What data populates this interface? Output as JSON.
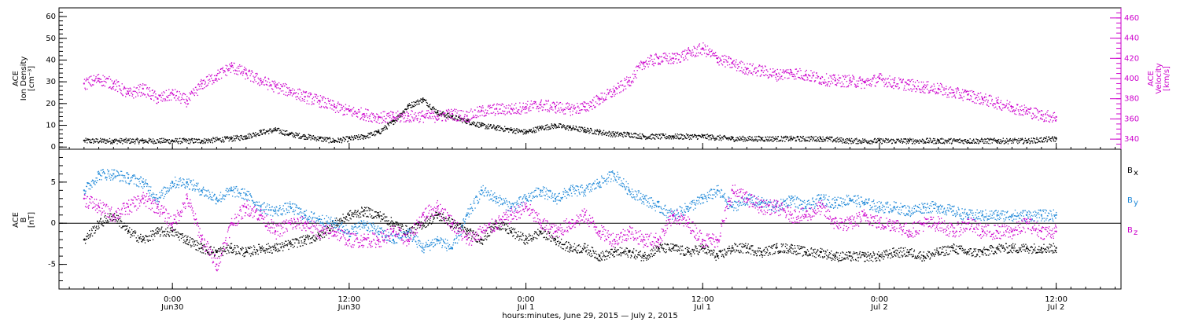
{
  "xlabel": "hours:minutes, June 29, 2015 — July  2, 2015",
  "colors": {
    "black": "#000000",
    "magenta": "#cc00cc",
    "blue": "#1e88d8",
    "axis": "#000000"
  },
  "chart_data": [
    {
      "type": "scatter",
      "panel": "top",
      "ylabel_left": [
        "ACE",
        "Ion Density",
        "[cm⁻³]"
      ],
      "ylabel_right": [
        "ACE",
        "Velocity",
        "[km/s]"
      ],
      "x_range_hours": [
        0,
        66
      ],
      "x_ticks": [
        {
          "h": 6,
          "label": "0:00",
          "sub": "Jun30"
        },
        {
          "h": 18,
          "label": "12:00",
          "sub": "Jun30"
        },
        {
          "h": 30,
          "label": "0:00",
          "sub": "Jul 1"
        },
        {
          "h": 42,
          "label": "12:00",
          "sub": "Jul 1"
        },
        {
          "h": 54,
          "label": "0:00",
          "sub": "Jul 2"
        },
        {
          "h": 66,
          "label": "12:00",
          "sub": "Jul 2"
        }
      ],
      "ylim_left": [
        -1,
        64
      ],
      "yticks_left": [
        0,
        10,
        20,
        30,
        40,
        50,
        60
      ],
      "ylim_right": [
        330,
        470
      ],
      "yticks_right": [
        340,
        360,
        380,
        400,
        420,
        440,
        460
      ],
      "series": [
        {
          "color": "black",
          "axis": "left",
          "x": [
            0,
            2,
            4,
            6,
            8,
            10,
            11,
            12,
            13,
            14,
            15,
            16,
            17,
            18,
            19,
            20,
            21,
            22,
            23,
            24,
            25,
            26,
            27,
            28,
            29,
            30,
            31,
            32,
            33,
            34,
            35,
            36,
            37,
            38,
            40,
            42,
            44,
            46,
            48,
            50,
            52,
            54,
            56,
            58,
            60,
            62,
            64,
            66
          ],
          "y": [
            3,
            3,
            3,
            3,
            3,
            4,
            5,
            7,
            8,
            6,
            5,
            4,
            3,
            4,
            5,
            7,
            12,
            19,
            22,
            16,
            14,
            12,
            10,
            9,
            8,
            7,
            9,
            10,
            9,
            8,
            7,
            6,
            6,
            5,
            5,
            5,
            4,
            4,
            4,
            4,
            3,
            3,
            3,
            3,
            3,
            3,
            3,
            4
          ]
        },
        {
          "color": "magenta",
          "axis": "right",
          "x": [
            0,
            1,
            2,
            3,
            4,
            5,
            6,
            7,
            8,
            9,
            10,
            11,
            12,
            13,
            14,
            15,
            16,
            17,
            18,
            19,
            20,
            21,
            22,
            23,
            24,
            25,
            26,
            27,
            28,
            29,
            30,
            31,
            32,
            33,
            34,
            35,
            36,
            37,
            38,
            39,
            40,
            41,
            42,
            43,
            44,
            45,
            46,
            47,
            48,
            49,
            50,
            51,
            52,
            53,
            54,
            55,
            56,
            57,
            58,
            59,
            60,
            61,
            62,
            63,
            64,
            65,
            66
          ],
          "y": [
            395,
            400,
            395,
            385,
            390,
            380,
            385,
            378,
            395,
            403,
            412,
            405,
            398,
            392,
            388,
            382,
            378,
            372,
            368,
            365,
            362,
            362,
            363,
            363,
            363,
            365,
            363,
            368,
            370,
            370,
            372,
            374,
            372,
            370,
            372,
            380,
            388,
            398,
            416,
            420,
            420,
            425,
            430,
            420,
            415,
            410,
            408,
            404,
            406,
            404,
            400,
            398,
            398,
            396,
            400,
            396,
            394,
            392,
            390,
            386,
            384,
            380,
            376,
            372,
            368,
            364,
            362
          ]
        }
      ]
    },
    {
      "type": "scatter",
      "panel": "bottom",
      "ylabel_left": [
        "ACE",
        "B",
        "[nT]"
      ],
      "x_range_hours": [
        0,
        66
      ],
      "ylim": [
        -8,
        9
      ],
      "yticks": [
        -5,
        0,
        5
      ],
      "zero_line": true,
      "legend": [
        {
          "label": "B",
          "sub": "x",
          "color": "black"
        },
        {
          "label": "B",
          "sub": "y",
          "color": "blue"
        },
        {
          "label": "B",
          "sub": "z",
          "color": "magenta"
        }
      ],
      "series": [
        {
          "color": "black",
          "name": "B_x",
          "x": [
            0,
            1,
            2,
            3,
            4,
            5,
            6,
            7,
            8,
            9,
            10,
            11,
            12,
            13,
            14,
            15,
            16,
            17,
            18,
            19,
            20,
            21,
            22,
            23,
            24,
            25,
            26,
            27,
            28,
            29,
            30,
            31,
            32,
            33,
            34,
            35,
            36,
            37,
            38,
            39,
            40,
            41,
            42,
            43,
            44,
            45,
            46,
            47,
            48,
            49,
            50,
            51,
            52,
            53,
            54,
            55,
            56,
            57,
            58,
            59,
            60,
            61,
            62,
            63,
            64,
            65,
            66
          ],
          "y": [
            -2,
            0,
            1,
            -1,
            -2,
            -1,
            -1,
            -2,
            -3,
            -3.5,
            -3,
            -3.5,
            -3,
            -3,
            -2.5,
            -2,
            -1.5,
            0,
            1,
            1.5,
            1,
            0,
            -1,
            0,
            1,
            0,
            -1,
            -2,
            0,
            -1,
            -2,
            -1,
            -2,
            -3,
            -3,
            -4,
            -3.5,
            -3.5,
            -4,
            -3,
            -3,
            -3.5,
            -3,
            -4,
            -3,
            -3,
            -3.5,
            -3,
            -3,
            -3.5,
            -3.5,
            -4,
            -4,
            -4,
            -4,
            -3.5,
            -3.5,
            -4,
            -3.5,
            -3,
            -3.5,
            -3.5,
            -3,
            -3,
            -3,
            -3,
            -3
          ]
        },
        {
          "color": "blue",
          "name": "B_y",
          "x": [
            0,
            1,
            2,
            3,
            4,
            5,
            6,
            7,
            8,
            9,
            10,
            11,
            12,
            13,
            14,
            15,
            16,
            17,
            18,
            19,
            20,
            21,
            22,
            23,
            24,
            25,
            26,
            27,
            28,
            29,
            30,
            31,
            32,
            33,
            34,
            35,
            36,
            37,
            38,
            39,
            40,
            41,
            42,
            43,
            44,
            45,
            46,
            47,
            48,
            49,
            50,
            51,
            52,
            53,
            54,
            55,
            56,
            57,
            58,
            59,
            60,
            61,
            62,
            63,
            64,
            65,
            66
          ],
          "y": [
            4,
            6,
            6,
            5.5,
            5,
            3,
            5,
            5,
            4,
            3,
            4,
            3.5,
            2,
            1.5,
            2,
            1,
            0.5,
            0,
            -1,
            0,
            -1,
            -2,
            -1,
            -3,
            -2,
            -3,
            1,
            4,
            3,
            2,
            3,
            4,
            3,
            4,
            4,
            5,
            6,
            4,
            3,
            2,
            1,
            2,
            3,
            4,
            2,
            3,
            2.5,
            2,
            3,
            2,
            3,
            2.5,
            3,
            2.5,
            2,
            2,
            1.5,
            2,
            2,
            1.5,
            1,
            1,
            1,
            1,
            1,
            1,
            1
          ]
        },
        {
          "color": "magenta",
          "name": "B_z",
          "x": [
            0,
            1,
            2,
            3,
            4,
            5,
            6,
            7,
            8,
            9,
            10,
            11,
            12,
            13,
            14,
            15,
            16,
            17,
            18,
            19,
            20,
            21,
            22,
            23,
            24,
            25,
            26,
            27,
            28,
            29,
            30,
            31,
            32,
            33,
            34,
            35,
            36,
            37,
            38,
            39,
            40,
            41,
            42,
            43,
            44,
            45,
            46,
            47,
            48,
            49,
            50,
            51,
            52,
            53,
            54,
            55,
            56,
            57,
            58,
            59,
            60,
            61,
            62,
            63,
            64,
            65,
            66
          ],
          "y": [
            3,
            2,
            1,
            2,
            3,
            2,
            0,
            3,
            -2,
            -5,
            0,
            2,
            1,
            -1,
            0,
            0,
            -1,
            -1,
            -2,
            -2,
            -2,
            -1,
            -2,
            1,
            2,
            0,
            -2,
            -1,
            0,
            1,
            2,
            0,
            -1,
            0,
            1,
            -1,
            -2,
            -1,
            -2,
            -2,
            1,
            0,
            -2,
            -2,
            4,
            3,
            2,
            2,
            1,
            1,
            2,
            0,
            0,
            1,
            0,
            0,
            -1,
            0,
            0,
            -1,
            0,
            -1,
            -1,
            -1,
            0,
            -1,
            -1
          ]
        }
      ]
    }
  ]
}
